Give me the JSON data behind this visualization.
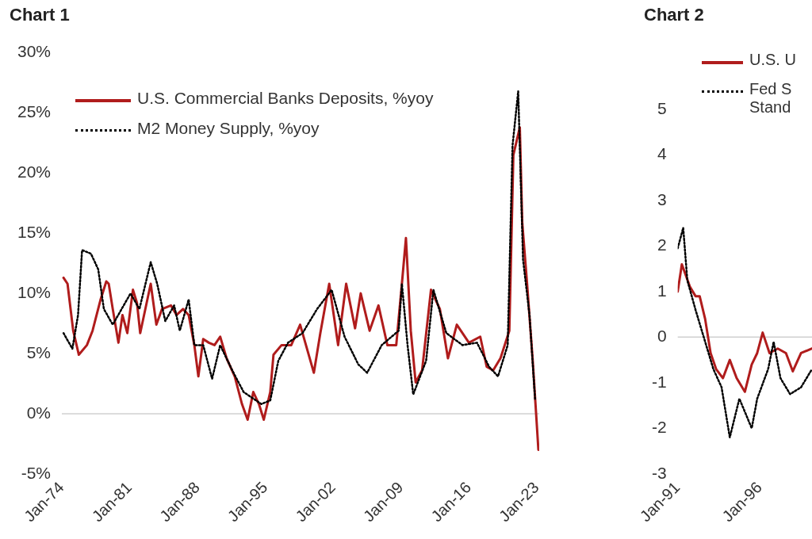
{
  "chart_data": [
    {
      "type": "line",
      "title": "Chart 1",
      "legend": "top left",
      "grid": false,
      "xlim": [
        "1974-01",
        "2023-04"
      ],
      "xticks": [
        {
          "value": "1974-01",
          "label": "Jan-74"
        },
        {
          "value": "1981-01",
          "label": "Jan-81"
        },
        {
          "value": "1988-01",
          "label": "Jan-88"
        },
        {
          "value": "1995-01",
          "label": "Jan-95"
        },
        {
          "value": "2002-01",
          "label": "Jan-02"
        },
        {
          "value": "2009-01",
          "label": "Jan-09"
        },
        {
          "value": "2016-01",
          "label": "Jan-16"
        },
        {
          "value": "2023-01",
          "label": "Jan-23"
        }
      ],
      "ylim": [
        -5,
        30
      ],
      "yticks": [
        {
          "value": -5,
          "label": "-5%"
        },
        {
          "value": 0,
          "label": "0%"
        },
        {
          "value": 5,
          "label": "5%"
        },
        {
          "value": 10,
          "label": "10%"
        },
        {
          "value": 15,
          "label": "15%"
        },
        {
          "value": 20,
          "label": "20%"
        },
        {
          "value": 25,
          "label": "25%"
        },
        {
          "value": 30,
          "label": "30%"
        }
      ],
      "ref_lines": [
        {
          "axis": "y",
          "value": 0,
          "color": "#d0d0d0"
        }
      ],
      "series": [
        {
          "name": "U.S. Commercial Banks Deposits, %yoy",
          "color": "#b01c1c",
          "line_style": "solid",
          "x": [
            "1974-03",
            "1974-08",
            "1975-03",
            "1975-10",
            "1976-08",
            "1977-03",
            "1978-01",
            "1978-08",
            "1978-11",
            "1979-04",
            "1979-11",
            "1980-04",
            "1980-10",
            "1981-05",
            "1981-10",
            "1982-02",
            "1983-03",
            "1983-10",
            "1984-05",
            "1985-04",
            "1985-11",
            "1986-07",
            "1987-02",
            "1987-09",
            "1988-02",
            "1988-08",
            "1989-03",
            "1989-10",
            "1990-05",
            "1991-01",
            "1991-11",
            "1992-08",
            "1993-03",
            "1993-10",
            "1994-05",
            "1994-11",
            "1995-07",
            "1995-11",
            "1996-09",
            "1997-09",
            "1998-08",
            "2000-01",
            "2000-09",
            "2001-08",
            "2002-07",
            "2003-05",
            "2004-04",
            "2004-11",
            "2005-10",
            "2006-09",
            "2007-08",
            "2008-07",
            "2009-02",
            "2009-07",
            "2010-01",
            "2010-07",
            "2011-03",
            "2012-02",
            "2013-01",
            "2013-11",
            "2014-10",
            "2016-01",
            "2017-03",
            "2017-11",
            "2018-07",
            "2019-04",
            "2020-03",
            "2020-08",
            "2021-04",
            "2021-07",
            "2022-01",
            "2022-08",
            "2023-03"
          ],
          "values": [
            11.3,
            10.8,
            6.9,
            4.9,
            5.7,
            6.9,
            9.5,
            11.0,
            10.8,
            8.7,
            5.9,
            8.2,
            6.7,
            10.3,
            9.2,
            6.7,
            10.8,
            7.4,
            8.7,
            9.0,
            8.2,
            8.7,
            8.2,
            5.7,
            3.1,
            6.2,
            5.9,
            5.7,
            6.4,
            4.6,
            3.1,
            0.8,
            -0.5,
            1.8,
            0.8,
            -0.5,
            1.8,
            4.9,
            5.7,
            5.7,
            7.4,
            3.4,
            6.7,
            10.8,
            5.7,
            10.8,
            7.1,
            10.0,
            6.9,
            9.0,
            5.7,
            5.7,
            10.8,
            14.6,
            6.9,
            2.6,
            3.6,
            10.3,
            8.7,
            4.6,
            7.4,
            5.9,
            6.4,
            3.9,
            3.6,
            4.6,
            6.9,
            21.5,
            23.8,
            15.9,
            10.8,
            4.4,
            -3.0
          ]
        },
        {
          "name": "M2 Money Supply, %yoy",
          "color": "#000000",
          "line_style": "dotted",
          "x": [
            "1974-03",
            "1975-02",
            "1975-09",
            "1976-02",
            "1977-01",
            "1977-10",
            "1978-05",
            "1979-04",
            "1980-03",
            "1981-02",
            "1982-01",
            "1983-03",
            "1983-11",
            "1984-09",
            "1985-08",
            "1986-03",
            "1987-02",
            "1987-09",
            "1988-08",
            "1989-07",
            "1990-05",
            "1991-08",
            "1992-10",
            "1993-09",
            "1994-08",
            "1995-07",
            "1996-05",
            "1997-05",
            "1998-11",
            "2000-05",
            "2001-11",
            "2003-03",
            "2004-08",
            "2005-07",
            "2007-01",
            "2008-10",
            "2009-02",
            "2009-09",
            "2010-04",
            "2011-08",
            "2012-05",
            "2013-09",
            "2015-05",
            "2016-11",
            "2018-02",
            "2019-01",
            "2020-01",
            "2020-07",
            "2021-02",
            "2021-08",
            "2022-04",
            "2022-11"
          ],
          "values": [
            6.7,
            5.4,
            8.2,
            13.6,
            13.3,
            12.0,
            8.7,
            7.4,
            8.7,
            10.0,
            8.7,
            12.6,
            10.8,
            7.7,
            9.0,
            6.9,
            9.5,
            5.7,
            5.7,
            2.9,
            5.7,
            3.6,
            1.8,
            1.3,
            0.8,
            1.1,
            4.4,
            5.9,
            6.7,
            8.7,
            10.3,
            6.4,
            4.1,
            3.4,
            5.7,
            6.9,
            10.8,
            5.7,
            1.6,
            4.4,
            10.3,
            6.7,
            5.7,
            5.9,
            3.9,
            3.1,
            5.7,
            22.3,
            26.8,
            12.8,
            8.2,
            1.1
          ]
        }
      ]
    },
    {
      "type": "line",
      "title": "Chart 2",
      "legend": "top",
      "grid": false,
      "xlim": [
        "1991-01",
        "1999-03"
      ],
      "xticks": [
        {
          "value": "1991-01",
          "label": "Jan-91"
        },
        {
          "value": "1996-01",
          "label": "Jan-96"
        }
      ],
      "ylim": [
        -3,
        5
      ],
      "yticks": [
        -3,
        -2,
        -1,
        0,
        1,
        2,
        3,
        4,
        5
      ],
      "ref_lines": [
        {
          "axis": "y",
          "value": 0,
          "color": "#d0d0d0"
        }
      ],
      "series": [
        {
          "name": "U.S. U",
          "color": "#b01c1c",
          "line_style": "solid",
          "x": [
            "1991-01",
            "1991-04",
            "1991-07",
            "1991-10",
            "1992-02",
            "1992-05",
            "1992-09",
            "1993-01",
            "1993-05",
            "1993-10",
            "1994-03",
            "1994-08",
            "1995-02",
            "1995-07",
            "1995-11",
            "1996-03",
            "1996-08",
            "1997-02",
            "1997-08",
            "1998-01",
            "1998-07",
            "1999-03"
          ],
          "values": [
            1.0,
            1.6,
            1.35,
            1.1,
            0.9,
            0.9,
            0.4,
            -0.35,
            -0.7,
            -0.9,
            -0.5,
            -0.9,
            -1.2,
            -0.6,
            -0.35,
            0.1,
            -0.35,
            -0.25,
            -0.35,
            -0.75,
            -0.35,
            -0.25
          ]
        },
        {
          "name": "Fed S Stand",
          "color": "#000000",
          "line_style": "dotted",
          "x": [
            "1991-01",
            "1991-05",
            "1991-08",
            "1992-02",
            "1992-09",
            "1993-03",
            "1993-09",
            "1994-03",
            "1994-10",
            "1995-07",
            "1995-11",
            "1996-07",
            "1996-11",
            "1997-04",
            "1997-11",
            "1998-07",
            "1999-03"
          ],
          "values": [
            1.95,
            2.4,
            1.25,
            0.6,
            -0.1,
            -0.7,
            -1.1,
            -2.2,
            -1.35,
            -2.0,
            -1.35,
            -0.7,
            -0.1,
            -0.9,
            -1.25,
            -1.1,
            -0.7
          ]
        }
      ]
    }
  ]
}
